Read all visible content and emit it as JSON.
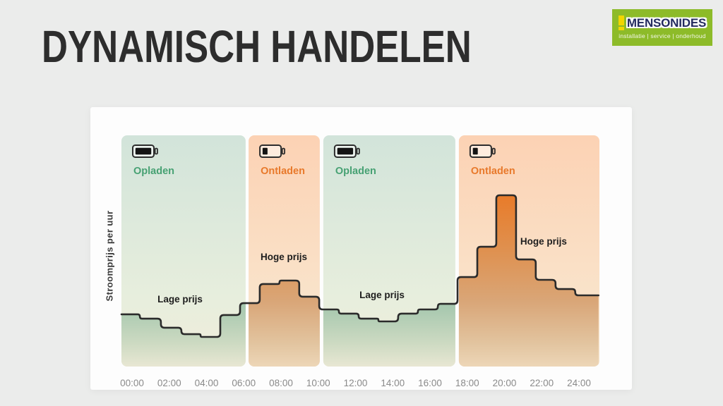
{
  "page": {
    "background_color": "#ebeceb"
  },
  "header": {
    "title": "DYNAMISCH HANDELEN",
    "title_color": "#2d2d2d"
  },
  "logo": {
    "name": "MENSONIDES",
    "tagline": "installatie | service | onderhoud",
    "bg_color": "#8dbb29",
    "name_color": "#242b5f",
    "mark_color": "#f2d600",
    "tagline_color": "#f3f7e8"
  },
  "chart_data": {
    "type": "area",
    "subtype": "step",
    "title": "",
    "y_label": "Stroomprijs per uur",
    "xlabel": "",
    "x_ticks": [
      "00:00",
      "02:00",
      "04:00",
      "06:00",
      "08:00",
      "10:00",
      "12:00",
      "14:00",
      "16:00",
      "18:00",
      "20:00",
      "22:00",
      "24:00"
    ],
    "x_tick_interval_hours": 2,
    "x_range_hours": [
      -0.6,
      25.1
    ],
    "y_range": [
      0,
      100
    ],
    "grid": false,
    "legend": false,
    "series": [
      {
        "name": "Stroomprijs per uur (relatief)",
        "edges_hours": [
          -0.57,
          0.42,
          1.55,
          2.65,
          3.68,
          4.74,
          5.8,
          6.86,
          7.92,
          8.98,
          10.05,
          11.11,
          12.17,
          13.23,
          14.29,
          15.35,
          16.42,
          17.48,
          18.54,
          19.56,
          20.62,
          21.68,
          22.74,
          23.8,
          25.05
        ],
        "values": [
          22.6,
          20.7,
          16.8,
          14.0,
          12.8,
          22.3,
          27.4,
          35.7,
          37.2,
          30.2,
          24.7,
          22.9,
          20.7,
          19.5,
          22.9,
          24.7,
          27.1,
          38.7,
          51.8,
          74.1,
          46.3,
          37.5,
          33.5,
          30.8
        ]
      }
    ],
    "bands": [
      {
        "label": "Opladen",
        "theme": "charge",
        "battery": "full",
        "from_hour": -0.57,
        "to_hour": 6.1
      },
      {
        "label": "Ontladen",
        "theme": "discharge",
        "battery": "low",
        "from_hour": 6.26,
        "to_hour": 10.08
      },
      {
        "label": "Opladen",
        "theme": "charge",
        "battery": "full",
        "from_hour": 10.27,
        "to_hour": 17.36
      },
      {
        "label": "Ontladen",
        "theme": "discharge",
        "battery": "low",
        "from_hour": 17.55,
        "to_hour": 25.1
      }
    ],
    "annotations": [
      {
        "text": "Lage prijs",
        "x_hour": 2.58,
        "y_value": 27.7
      },
      {
        "text": "Hoge prijs",
        "x_hour": 8.15,
        "y_value": 46.0
      },
      {
        "text": "Lage prijs",
        "x_hour": 13.42,
        "y_value": 29.6
      },
      {
        "text": "Hoge prijs",
        "x_hour": 22.1,
        "y_value": 52.7
      }
    ],
    "colors": {
      "line": "#2b2b2b",
      "charge_label": "#47a173",
      "discharge_label": "#e8792b",
      "annotation_text": "#1d1d1d",
      "tick_label": "#8a8a8a",
      "charge_band_top": "#d2e4da",
      "charge_band_bottom": "#f1ecdb",
      "discharge_band_top": "#fcd2b4",
      "discharge_band_bottom": "#f4e3cb",
      "charge_fill_strong": "#559a7c",
      "discharge_fill_strong": "#e76f15",
      "battery_icon": "#2d2d2d"
    }
  }
}
